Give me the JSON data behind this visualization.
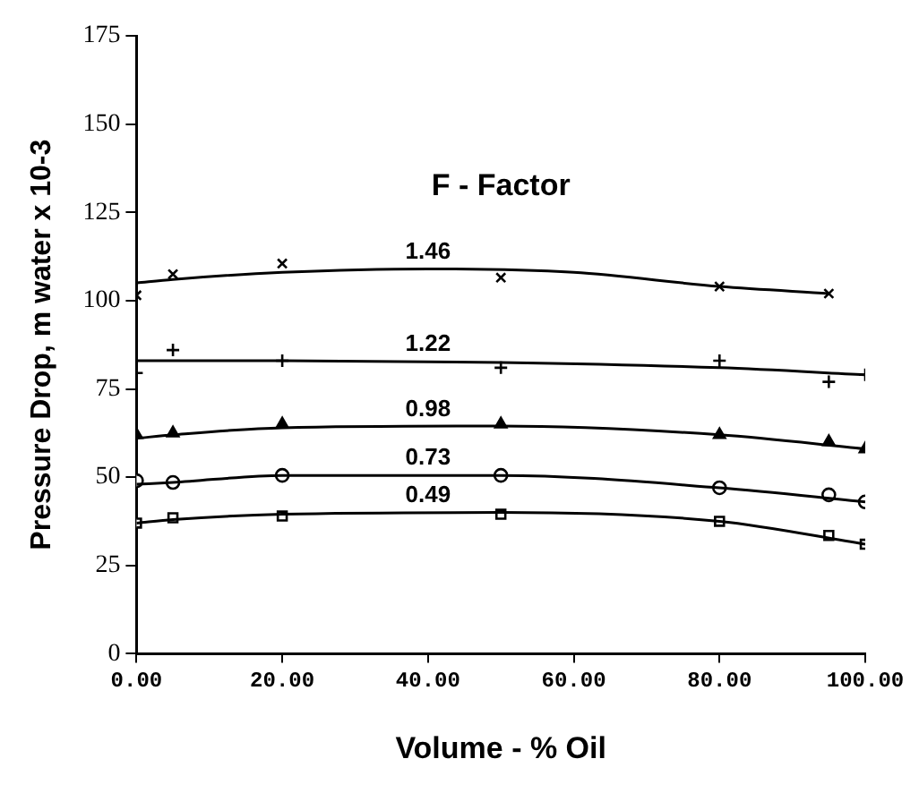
{
  "chart_data": {
    "type": "scatter",
    "xlabel": "Volume - % Oil",
    "ylabel": "Pressure Drop, m water x 10-3",
    "annotations": [
      "F - Factor"
    ],
    "legend": false,
    "grid": false,
    "xlim": [
      0,
      100
    ],
    "xticks": [
      {
        "value": 0,
        "label": "0.00"
      },
      {
        "value": 20,
        "label": "20.00"
      },
      {
        "value": 40,
        "label": "40.00"
      },
      {
        "value": 60,
        "label": "60.00"
      },
      {
        "value": 80,
        "label": "80.00"
      },
      {
        "value": 100,
        "label": "100.00"
      }
    ],
    "ylim": [
      0,
      175
    ],
    "yticks": [
      0,
      25,
      50,
      75,
      100,
      125,
      150,
      175
    ],
    "series": [
      {
        "name": "1.46",
        "type": "line",
        "color": "#000000",
        "x": [
          0,
          5,
          20,
          40,
          60,
          80,
          95
        ],
        "values": [
          105,
          106,
          108,
          109,
          108,
          104,
          102
        ]
      },
      {
        "type": "scatter",
        "color": "#000000",
        "marker": "cross",
        "x": [
          0,
          5,
          20,
          50,
          80,
          95
        ],
        "values": [
          101.5,
          107.5,
          110.5,
          106.5,
          104,
          102
        ]
      },
      {
        "name": "1.22",
        "type": "line",
        "color": "#000000",
        "x": [
          0,
          20,
          50,
          80,
          100
        ],
        "values": [
          83,
          83,
          82.5,
          81,
          79
        ]
      },
      {
        "type": "scatter",
        "color": "#000000",
        "marker": "plus",
        "x": [
          0,
          5,
          20,
          50,
          80,
          95,
          100
        ],
        "values": [
          79.5,
          86,
          83,
          81,
          83,
          77,
          79
        ]
      },
      {
        "name": "0.98",
        "type": "line",
        "color": "#000000",
        "x": [
          0,
          5,
          20,
          50,
          80,
          100
        ],
        "values": [
          61,
          62,
          64,
          64.5,
          62,
          58
        ]
      },
      {
        "type": "scatter",
        "color": "#000000",
        "marker": "triangle",
        "x": [
          0,
          5,
          20,
          50,
          80,
          95,
          100
        ],
        "values": [
          62,
          62.5,
          65,
          65,
          62,
          60,
          58
        ]
      },
      {
        "name": "0.73",
        "type": "line",
        "color": "#000000",
        "x": [
          0,
          5,
          20,
          50,
          80,
          100
        ],
        "values": [
          48,
          48.5,
          50.5,
          50.5,
          47,
          43
        ]
      },
      {
        "type": "scatter",
        "color": "#000000",
        "marker": "circle",
        "x": [
          0,
          5,
          20,
          50,
          80,
          95,
          100
        ],
        "values": [
          49,
          48.5,
          50.5,
          50.5,
          47,
          45,
          43
        ]
      },
      {
        "name": "0.49",
        "type": "line",
        "color": "#000000",
        "x": [
          0,
          5,
          20,
          50,
          80,
          100
        ],
        "values": [
          37,
          38,
          39.5,
          40,
          37.5,
          31
        ]
      },
      {
        "type": "scatter",
        "color": "#000000",
        "marker": "square",
        "x": [
          0,
          5,
          20,
          50,
          80,
          95,
          100
        ],
        "values": [
          37,
          38.5,
          39,
          39.5,
          37.5,
          33.5,
          31
        ]
      }
    ]
  }
}
